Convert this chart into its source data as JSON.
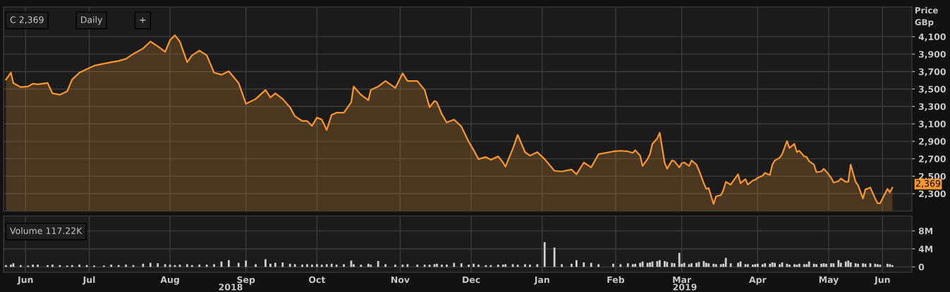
{
  "chart_data": [
    {
      "type": "area",
      "ylabel": "Price\nGBp",
      "tick_labels": "y",
      "grid": true,
      "legend": false,
      "annotations": [
        "C 2,369",
        "Daily",
        "+",
        {
          "text": "2,369",
          "x": "2019-06-10",
          "y": 2369
        }
      ],
      "x": [
        "2018-06-13",
        "2018-06-15",
        "2018-06-16",
        "2018-06-19",
        "2018-06-22",
        "2018-06-24",
        "2018-06-26",
        "2018-06-30",
        "2018-07-02",
        "2018-07-05",
        "2018-07-08",
        "2018-07-10",
        "2018-07-13",
        "2018-07-16",
        "2018-07-19",
        "2018-07-23",
        "2018-07-26",
        "2018-07-29",
        "2018-08-01",
        "2018-08-04",
        "2018-08-08",
        "2018-08-11",
        "2018-08-14",
        "2018-08-17",
        "2018-08-19",
        "2018-08-21",
        "2018-08-23",
        "2018-08-26",
        "2018-08-28",
        "2018-08-31",
        "2018-09-03",
        "2018-09-06",
        "2018-09-09",
        "2018-09-12",
        "2018-09-16",
        "2018-09-19",
        "2018-09-23",
        "2018-09-27",
        "2018-09-29",
        "2018-10-01",
        "2018-10-04",
        "2018-10-07",
        "2018-10-09",
        "2018-10-12",
        "2018-10-14",
        "2018-10-16",
        "2018-10-18",
        "2018-10-20",
        "2018-10-22",
        "2018-10-24",
        "2018-10-26",
        "2018-10-29",
        "2018-11-01",
        "2018-11-02",
        "2018-11-05",
        "2018-11-08",
        "2018-11-09",
        "2018-11-12",
        "2018-11-15",
        "2018-11-19",
        "2018-11-22",
        "2018-11-24",
        "2018-11-28",
        "2018-12-01",
        "2018-12-03",
        "2018-12-05",
        "2018-12-06",
        "2018-12-08",
        "2018-12-10",
        "2018-12-13",
        "2018-12-16",
        "2018-12-19",
        "2018-12-21",
        "2018-12-23",
        "2018-12-26",
        "2018-12-28",
        "2018-12-31",
        "2019-01-02",
        "2019-01-03",
        "2019-01-06",
        "2019-01-08",
        "2019-01-11",
        "2019-01-13",
        "2019-01-16",
        "2019-01-19",
        "2019-01-23",
        "2019-01-26",
        "2019-01-30",
        "2019-02-01",
        "2019-02-04",
        "2019-02-07",
        "2019-02-10",
        "2019-02-16",
        "2019-02-19",
        "2019-02-22",
        "2019-02-24",
        "2019-02-25",
        "2019-02-27",
        "2019-02-28",
        "2019-03-02",
        "2019-03-03",
        "2019-03-04",
        "2019-03-06",
        "2019-03-07",
        "2019-03-09",
        "2019-03-10",
        "2019-03-12",
        "2019-03-13",
        "2019-03-15",
        "2019-03-16",
        "2019-03-17",
        "2019-03-19",
        "2019-03-20",
        "2019-03-22",
        "2019-03-23",
        "2019-03-25",
        "2019-03-26",
        "2019-03-27",
        "2019-03-29",
        "2019-03-30",
        "2019-04-01",
        "2019-04-02",
        "2019-04-03",
        "2019-04-05",
        "2019-04-08",
        "2019-04-09",
        "2019-04-11",
        "2019-04-12",
        "2019-04-14",
        "2019-04-15",
        "2019-04-16",
        "2019-04-18",
        "2019-04-19",
        "2019-04-21",
        "2019-04-22",
        "2019-04-23",
        "2019-04-25",
        "2019-04-26",
        "2019-04-28",
        "2019-04-29",
        "2019-05-01",
        "2019-05-02",
        "2019-05-03",
        "2019-05-05",
        "2019-05-06",
        "2019-05-07",
        "2019-05-09",
        "2019-05-10",
        "2019-05-12",
        "2019-05-13",
        "2019-05-14",
        "2019-05-16",
        "2019-05-17",
        "2019-05-19",
        "2019-05-20",
        "2019-05-22",
        "2019-05-23",
        "2019-05-24",
        "2019-05-26",
        "2019-05-27",
        "2019-05-29",
        "2019-05-30",
        "2019-06-01",
        "2019-06-03",
        "2019-06-04",
        "2019-06-05",
        "2019-06-08",
        "2019-06-09",
        "2019-06-10"
      ],
      "series": [
        {
          "color": "#f7962e",
          "values": [
            3608,
            3688,
            3569,
            3521,
            3529,
            3561,
            3553,
            3569,
            3450,
            3434,
            3474,
            3608,
            3688,
            3727,
            3767,
            3791,
            3807,
            3822,
            3846,
            3902,
            3965,
            4045,
            3989,
            3926,
            4060,
            4116,
            4045,
            3807,
            3886,
            3941,
            3886,
            3688,
            3664,
            3703,
            3569,
            3331,
            3386,
            3489,
            3402,
            3450,
            3386,
            3291,
            3188,
            3133,
            3133,
            3077,
            3172,
            3149,
            3030,
            3204,
            3228,
            3228,
            3347,
            3529,
            3434,
            3371,
            3489,
            3529,
            3592,
            3513,
            3680,
            3592,
            3592,
            3489,
            3291,
            3363,
            3347,
            3212,
            3117,
            3149,
            3069,
            2895,
            2799,
            2696,
            2720,
            2688,
            2728,
            2657,
            2609,
            2815,
            2974,
            2776,
            2736,
            2776,
            2696,
            2562,
            2554,
            2577,
            2522,
            2657,
            2601,
            2752,
            2784,
            2792,
            2784,
            2768,
            2799,
            2736,
            2617,
            2696,
            2752,
            2871,
            2934,
            2998,
            2657,
            2585,
            2680,
            2672,
            2601,
            2649,
            2657,
            2617,
            2680,
            2633,
            2570,
            2419,
            2355,
            2363,
            2181,
            2268,
            2284,
            2340,
            2435,
            2403,
            2522,
            2419,
            2466,
            2403,
            2451,
            2458,
            2482,
            2506,
            2538,
            2514,
            2633,
            2680,
            2712,
            2752,
            2903,
            2823,
            2871,
            2776,
            2792,
            2728,
            2720,
            2672,
            2633,
            2546,
            2554,
            2585,
            2554,
            2482,
            2427,
            2443,
            2474,
            2435,
            2435,
            2633,
            2435,
            2395,
            2244,
            2347,
            2371,
            2244,
            2189,
            2189,
            2355,
            2316,
            2369
          ]
        }
      ],
      "xlim": [
        "2018-06-12",
        "2019-06-18"
      ],
      "xticks": [
        {
          "value": "2018-06-21",
          "label": null
        },
        {
          "value": "2018-07-17",
          "label": null
        },
        {
          "value": "2018-08-19",
          "label": null
        },
        {
          "value": "2018-09-19",
          "label": null
        },
        {
          "value": "2018-10-18",
          "label": null
        },
        {
          "value": "2018-11-21",
          "label": null
        },
        {
          "value": "2018-12-20",
          "label": null
        },
        {
          "value": "2019-01-18",
          "label": null
        },
        {
          "value": "2019-02-17",
          "label": null
        },
        {
          "value": "2019-03-16",
          "label": null
        },
        {
          "value": "2019-04-16",
          "label": null
        },
        {
          "value": "2019-05-15",
          "label": null
        },
        {
          "value": "2019-06-06",
          "label": null
        }
      ],
      "ylim": [
        2100,
        4440
      ],
      "yticks": [
        {
          "value": 2300,
          "label": "2,300"
        },
        {
          "value": 2500,
          "label": "2,500"
        },
        {
          "value": 2700,
          "label": "2,700"
        },
        {
          "value": 2900,
          "label": "2,900"
        },
        {
          "value": 3100,
          "label": "3,100"
        },
        {
          "value": 3300,
          "label": "3,300"
        },
        {
          "value": 3500,
          "label": "3,500"
        },
        {
          "value": 3700,
          "label": "3,700"
        },
        {
          "value": 3900,
          "label": "3,900"
        },
        {
          "value": 4100,
          "label": "4,100"
        }
      ]
    },
    {
      "type": "bar",
      "grid": true,
      "legend": false,
      "annotations": [
        "Volume 117.22K",
        "2018",
        "2019"
      ],
      "x": [
        "2018-06-13",
        "2018-06-15",
        "2018-06-16",
        "2018-06-19",
        "2018-06-22",
        "2018-06-24",
        "2018-06-26",
        "2018-06-30",
        "2018-07-02",
        "2018-07-05",
        "2018-07-08",
        "2018-07-10",
        "2018-07-13",
        "2018-07-16",
        "2018-07-19",
        "2018-07-23",
        "2018-07-26",
        "2018-07-29",
        "2018-08-01",
        "2018-08-04",
        "2018-08-08",
        "2018-08-11",
        "2018-08-14",
        "2018-08-17",
        "2018-08-19",
        "2018-08-21",
        "2018-08-23",
        "2018-08-26",
        "2018-08-28",
        "2018-08-31",
        "2018-09-03",
        "2018-09-06",
        "2018-09-09",
        "2018-09-12",
        "2018-09-16",
        "2018-09-19",
        "2018-09-23",
        "2018-09-27",
        "2018-09-29",
        "2018-10-01",
        "2018-10-04",
        "2018-10-07",
        "2018-10-09",
        "2018-10-12",
        "2018-10-14",
        "2018-10-16",
        "2018-10-18",
        "2018-10-20",
        "2018-10-22",
        "2018-10-24",
        "2018-10-26",
        "2018-10-29",
        "2018-11-01",
        "2018-11-02",
        "2018-11-05",
        "2018-11-08",
        "2018-11-09",
        "2018-11-12",
        "2018-11-15",
        "2018-11-19",
        "2018-11-22",
        "2018-11-24",
        "2018-11-28",
        "2018-12-01",
        "2018-12-03",
        "2018-12-05",
        "2018-12-06",
        "2018-12-08",
        "2018-12-10",
        "2018-12-13",
        "2018-12-16",
        "2018-12-19",
        "2018-12-21",
        "2018-12-23",
        "2018-12-26",
        "2018-12-28",
        "2018-12-31",
        "2019-01-02",
        "2019-01-03",
        "2019-01-06",
        "2019-01-08",
        "2019-01-11",
        "2019-01-13",
        "2019-01-16",
        "2019-01-19",
        "2019-01-23",
        "2019-01-26",
        "2019-01-30",
        "2019-02-01",
        "2019-02-04",
        "2019-02-07",
        "2019-02-10",
        "2019-02-16",
        "2019-02-19",
        "2019-02-22",
        "2019-02-24",
        "2019-02-25",
        "2019-02-27",
        "2019-02-28",
        "2019-03-02",
        "2019-03-03",
        "2019-03-04",
        "2019-03-06",
        "2019-03-07",
        "2019-03-09",
        "2019-03-10",
        "2019-03-12",
        "2019-03-13",
        "2019-03-15",
        "2019-03-16",
        "2019-03-17",
        "2019-03-19",
        "2019-03-20",
        "2019-03-22",
        "2019-03-23",
        "2019-03-25",
        "2019-03-26",
        "2019-03-27",
        "2019-03-29",
        "2019-03-30",
        "2019-04-01",
        "2019-04-02",
        "2019-04-03",
        "2019-04-05",
        "2019-04-08",
        "2019-04-09",
        "2019-04-11",
        "2019-04-12",
        "2019-04-14",
        "2019-04-15",
        "2019-04-16",
        "2019-04-18",
        "2019-04-19",
        "2019-04-21",
        "2019-04-22",
        "2019-04-23",
        "2019-04-25",
        "2019-04-26",
        "2019-04-28",
        "2019-04-29",
        "2019-05-01",
        "2019-05-02",
        "2019-05-03",
        "2019-05-05",
        "2019-05-06",
        "2019-05-07",
        "2019-05-09",
        "2019-05-10",
        "2019-05-12",
        "2019-05-13",
        "2019-05-14",
        "2019-05-16",
        "2019-05-17",
        "2019-05-19",
        "2019-05-20",
        "2019-05-22",
        "2019-05-23",
        "2019-05-24",
        "2019-05-26",
        "2019-05-27",
        "2019-05-29",
        "2019-05-30",
        "2019-06-01",
        "2019-06-03",
        "2019-06-04",
        "2019-06-05",
        "2019-06-08",
        "2019-06-09",
        "2019-06-10"
      ],
      "series": [
        {
          "color": "#cfcfcf",
          "values": [
            0.4,
            0.5,
            0.8,
            0.4,
            0.3,
            0.5,
            0.5,
            0.4,
            0.5,
            0.4,
            0.3,
            0.4,
            0.5,
            0.4,
            0.3,
            0.3,
            0.5,
            0.4,
            0.5,
            0.4,
            0.7,
            0.9,
            0.8,
            0.6,
            0.5,
            0.4,
            0.5,
            0.6,
            0.4,
            0.5,
            0.5,
            0.6,
            1.2,
            1.5,
            0.9,
            1.4,
            0.6,
            1.7,
            0.7,
            0.9,
            1.0,
            0.7,
            0.6,
            0.5,
            0.6,
            0.5,
            0.6,
            0.5,
            0.6,
            0.7,
            0.5,
            0.6,
            1.4,
            0.6,
            0.5,
            0.7,
            0.5,
            1.3,
            0.6,
            0.5,
            0.5,
            0.6,
            0.5,
            0.5,
            0.5,
            0.6,
            0.7,
            0.5,
            0.5,
            0.9,
            0.8,
            0.5,
            0.7,
            0.5,
            0.4,
            0.4,
            0.5,
            0.5,
            0.6,
            0.6,
            0.5,
            0.6,
            0.5,
            0.6,
            5.5,
            4.3,
            0.6,
            0.7,
            1.5,
            1.0,
            0.9,
            0.6,
            0.7,
            0.6,
            0.8,
            0.6,
            0.7,
            0.9,
            1.2,
            0.9,
            1.0,
            1.2,
            1.3,
            1.5,
            1.3,
            1.1,
            0.9,
            0.8,
            3.1,
            0.7,
            0.9,
            0.6,
            0.8,
            0.9,
            1.1,
            1.3,
            0.9,
            0.8,
            0.7,
            0.6,
            0.6,
            0.7,
            2.0,
            0.8,
            0.9,
            1.2,
            0.6,
            0.6,
            0.5,
            0.6,
            0.7,
            0.6,
            0.8,
            0.7,
            1.0,
            0.9,
            0.6,
            1.0,
            0.7,
            0.5,
            0.6,
            0.5,
            0.7,
            0.6,
            0.6,
            1.2,
            0.7,
            0.6,
            0.7,
            0.8,
            0.7,
            0.8,
            0.8,
            1.5,
            0.9,
            1.2,
            1.4,
            1.0,
            0.8,
            0.7,
            0.8,
            0.7,
            0.8,
            0.7,
            0.6,
            0.5,
            0.7,
            0.6,
            0.4
          ]
        }
      ],
      "xlim": [
        "2018-06-12",
        "2019-06-18"
      ],
      "xticks": [
        {
          "value": "2018-06-21",
          "label": "Jun"
        },
        {
          "value": "2018-07-17",
          "label": "Jul"
        },
        {
          "value": "2018-08-19",
          "label": "Aug"
        },
        {
          "value": "2018-09-19",
          "label": "Sep"
        },
        {
          "value": "2018-10-18",
          "label": "Oct"
        },
        {
          "value": "2018-11-21",
          "label": "Nov"
        },
        {
          "value": "2018-12-20",
          "label": "Dec"
        },
        {
          "value": "2019-01-18",
          "label": "Jan"
        },
        {
          "value": "2019-02-17",
          "label": "Feb"
        },
        {
          "value": "2019-03-16",
          "label": "Mar"
        },
        {
          "value": "2019-04-16",
          "label": "Apr"
        },
        {
          "value": "2019-05-15",
          "label": "May"
        },
        {
          "value": "2019-06-06",
          "label": "Jun"
        }
      ],
      "ylim": [
        -1.2,
        11.3
      ],
      "yticks": [
        0,
        {
          "value": 4,
          "label": "4M"
        },
        {
          "value": 8,
          "label": "8M"
        }
      ]
    }
  ]
}
